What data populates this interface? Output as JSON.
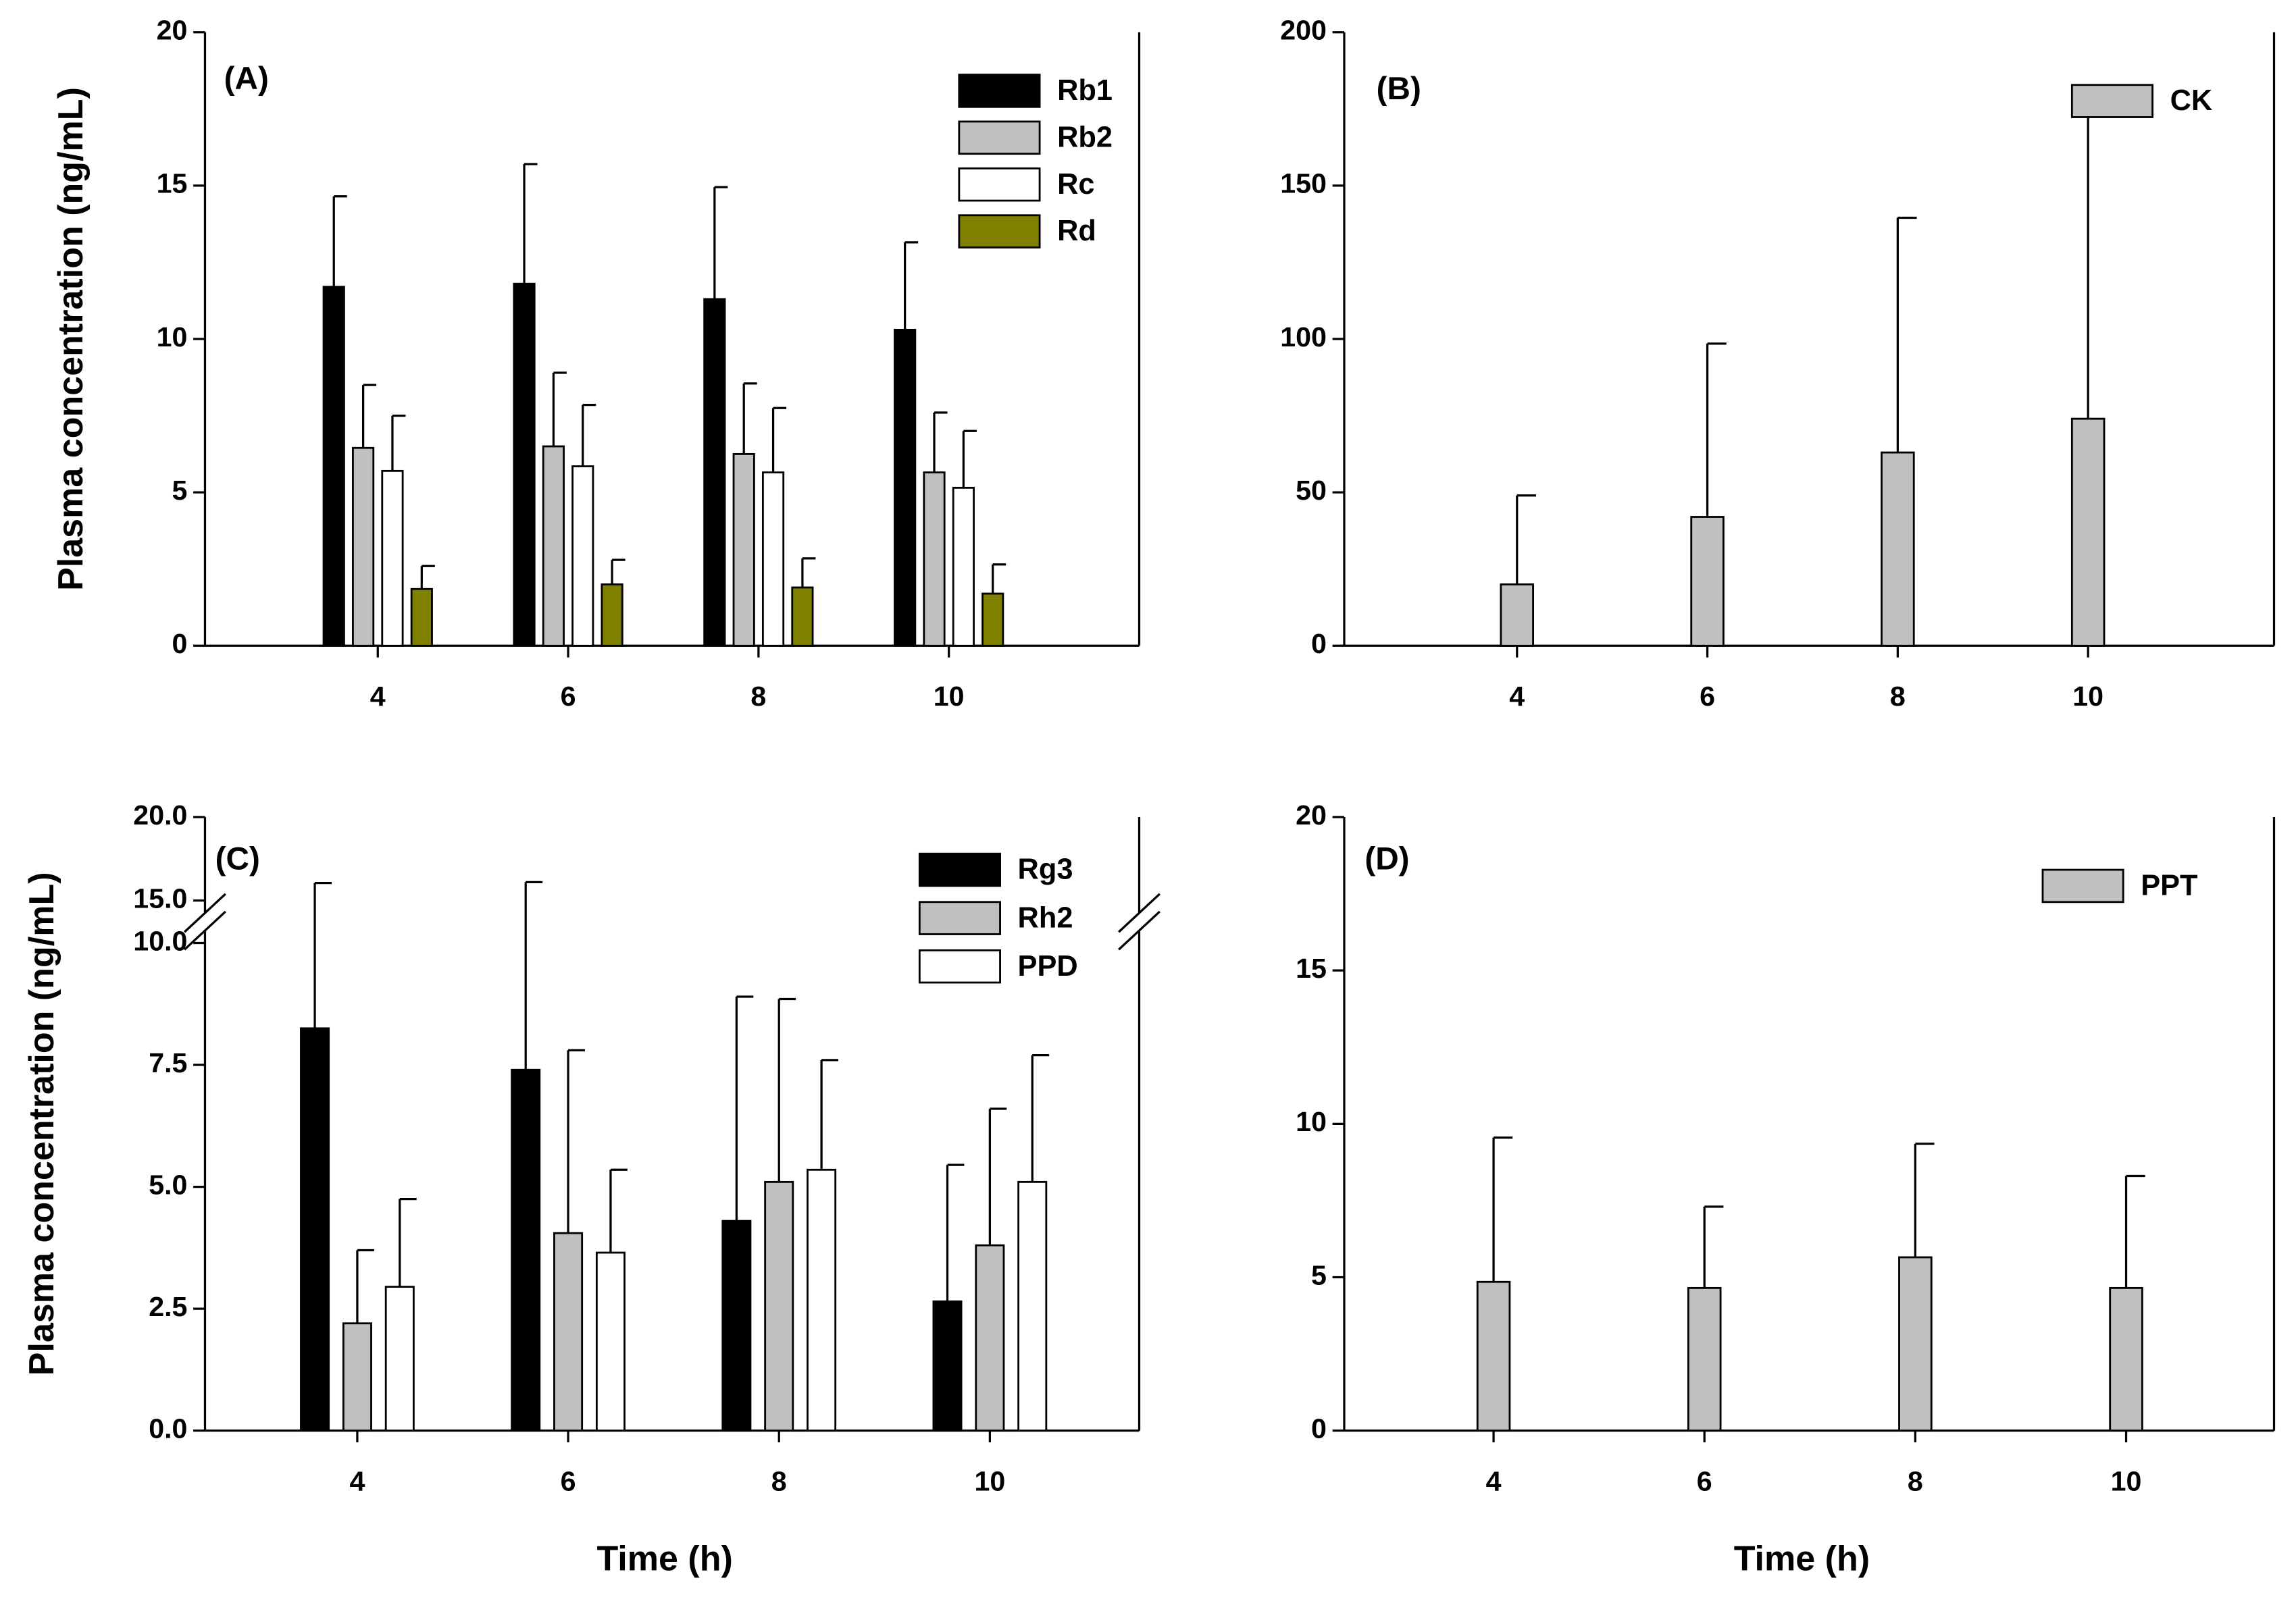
{
  "chart_data": [
    {
      "type": "bar",
      "title": "(A)",
      "ylabel": "Plasma concentration (ng/mL)",
      "categories": [
        "4",
        "6",
        "8",
        "10"
      ],
      "ylim": [
        0,
        20
      ],
      "yticks": [
        0,
        5,
        10,
        15,
        20
      ],
      "legend": "upper right",
      "series": [
        {
          "name": "Rb1",
          "color": "#000000",
          "values": [
            11.7,
            11.8,
            11.3,
            10.3
          ],
          "errors": [
            2.95,
            3.9,
            3.65,
            2.85
          ]
        },
        {
          "name": "Rb2",
          "color": "#c0c0c0",
          "values": [
            6.45,
            6.5,
            6.25,
            5.65
          ],
          "errors": [
            2.05,
            2.4,
            2.3,
            1.95
          ]
        },
        {
          "name": "Rc",
          "color": "#ffffff",
          "values": [
            5.7,
            5.85,
            5.65,
            5.15
          ],
          "errors": [
            1.8,
            2.0,
            2.1,
            1.85
          ]
        },
        {
          "name": "Rd",
          "color": "#808000",
          "values": [
            1.85,
            2.0,
            1.9,
            1.7
          ],
          "errors": [
            0.75,
            0.8,
            0.95,
            0.95
          ]
        }
      ]
    },
    {
      "type": "bar",
      "title": "(B)",
      "categories": [
        "4",
        "6",
        "8",
        "10"
      ],
      "ylim": [
        0,
        200
      ],
      "yticks": [
        0,
        50,
        100,
        150,
        200
      ],
      "legend": "upper right",
      "series": [
        {
          "name": "CK",
          "color": "#c0c0c0",
          "values": [
            20,
            42,
            63,
            74
          ],
          "errors": [
            29,
            56.5,
            76.5,
            108
          ]
        }
      ]
    },
    {
      "type": "bar",
      "title": "(C)",
      "ylabel": "Plasma concentration (ng/mL)",
      "xlabel": "Time (h)",
      "categories": [
        "4",
        "6",
        "8",
        "10"
      ],
      "ylim": [
        0,
        20
      ],
      "axis_break": [
        10,
        15
      ],
      "yticks": [
        {
          "value": 0,
          "label": "0.0"
        },
        {
          "value": 2.5,
          "label": "2.5"
        },
        {
          "value": 5,
          "label": "5.0"
        },
        {
          "value": 7.5,
          "label": "7.5"
        },
        {
          "value": 10,
          "label": "10.0"
        },
        {
          "value": 15,
          "label": "15.0"
        },
        {
          "value": 20,
          "label": "20.0"
        }
      ],
      "legend": "upper right",
      "series": [
        {
          "name": "Rg3",
          "color": "#000000",
          "values": [
            8.25,
            7.4,
            4.3,
            2.65
          ],
          "errors": [
            7.8,
            8.7,
            4.6,
            2.8
          ]
        },
        {
          "name": "Rh2",
          "color": "#c0c0c0",
          "values": [
            2.2,
            4.05,
            5.1,
            3.8
          ],
          "errors": [
            1.5,
            3.75,
            3.75,
            2.8
          ]
        },
        {
          "name": "PPD",
          "color": "#ffffff",
          "values": [
            2.95,
            3.65,
            5.35,
            5.1
          ],
          "errors": [
            1.8,
            1.7,
            2.25,
            2.6
          ]
        }
      ]
    },
    {
      "type": "bar",
      "title": "(D)",
      "xlabel": "Time (h)",
      "categories": [
        "4",
        "6",
        "8",
        "10"
      ],
      "ylim": [
        0,
        20
      ],
      "yticks": [
        0,
        5,
        10,
        15,
        20
      ],
      "legend": "upper right",
      "series": [
        {
          "name": "PPT",
          "color": "#c0c0c0",
          "values": [
            4.85,
            4.65,
            5.65,
            4.65
          ],
          "errors": [
            4.7,
            2.65,
            3.7,
            3.65
          ]
        }
      ]
    }
  ]
}
